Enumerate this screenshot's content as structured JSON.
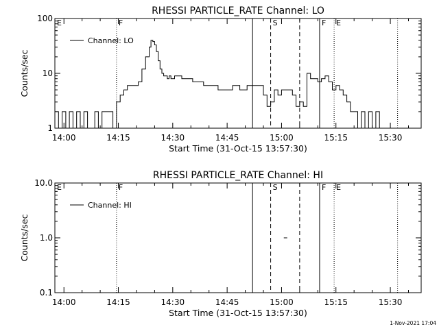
{
  "chart_data": [
    {
      "type": "line",
      "title": "RHESSI PARTICLE_RATE Channel: LO",
      "xlabel": "Start Time (31-Oct-15 13:57:30)",
      "ylabel": "Counts/sec",
      "y_scale": "log",
      "ylim": [
        1,
        100
      ],
      "xlim": [
        "13:57:30",
        "15:38:30"
      ],
      "x_ticks": [
        "14:00",
        "14:15",
        "14:30",
        "14:45",
        "15:00",
        "15:15",
        "15:30"
      ],
      "y_ticks": [
        "1",
        "10",
        "100"
      ],
      "legend": "top-left",
      "series": [
        {
          "name": "Channel: LO",
          "x": [
            "13:57:30",
            "13:58:30",
            "13:59:30",
            "14:00:30",
            "14:01:30",
            "14:02:30",
            "14:03:30",
            "14:04:30",
            "14:05:30",
            "14:06:30",
            "14:07:30",
            "14:08:30",
            "14:09:30",
            "14:10:30",
            "14:11:30",
            "14:12:30",
            "14:13:30",
            "14:14:30",
            "14:15:30",
            "14:16:30",
            "14:17:30",
            "14:18:30",
            "14:19:30",
            "14:20:30",
            "14:21:30",
            "14:22:30",
            "14:23:30",
            "14:24:00",
            "14:24:30",
            "14:25:00",
            "14:25:30",
            "14:26:00",
            "14:26:30",
            "14:27:00",
            "14:27:30",
            "14:28:00",
            "14:28:30",
            "14:29:00",
            "14:29:30",
            "14:30:30",
            "14:31:30",
            "14:32:30",
            "14:33:30",
            "14:34:30",
            "14:35:30",
            "14:36:30",
            "14:38:30",
            "14:40:30",
            "14:42:30",
            "14:44:30",
            "14:46:30",
            "14:48:30",
            "14:50:30",
            "14:52:30",
            "14:54:00",
            "14:55:00",
            "14:56:00",
            "14:57:00",
            "14:58:00",
            "14:59:00",
            "15:00:00",
            "15:01:00",
            "15:02:00",
            "15:03:00",
            "15:04:00",
            "15:05:00",
            "15:06:00",
            "15:07:00",
            "15:08:00",
            "15:09:00",
            "15:10:00",
            "15:11:00",
            "15:12:00",
            "15:13:00",
            "15:14:00",
            "15:15:00",
            "15:16:00",
            "15:17:00",
            "15:18:00",
            "15:19:00",
            "15:20:00",
            "15:21:00",
            "15:22:00",
            "15:23:00",
            "15:24:00",
            "15:25:00",
            "15:26:00",
            "15:27:00",
            "15:28:00"
          ],
          "y": [
            2,
            1,
            2,
            1,
            2,
            1,
            2,
            1,
            2,
            1,
            1,
            2,
            1,
            2,
            2,
            2,
            1,
            3,
            4,
            5,
            6,
            6,
            6,
            7,
            12,
            20,
            30,
            40,
            38,
            33,
            25,
            17,
            12,
            10,
            9,
            9,
            8,
            9,
            8,
            9,
            9,
            8,
            8,
            8,
            7,
            7,
            6,
            6,
            5,
            5,
            6,
            5,
            6,
            6,
            6,
            4,
            2.5,
            3,
            5,
            4,
            5,
            5,
            5,
            4,
            2.5,
            3,
            2.5,
            10,
            8,
            8,
            7,
            8,
            9,
            7,
            5,
            6,
            5,
            4,
            3,
            2,
            2,
            1,
            2,
            1,
            2,
            1,
            2,
            1,
            1
          ]
        }
      ],
      "markers": [
        {
          "label": "E",
          "time": "13:57:30",
          "style": "dotted"
        },
        {
          "label": "F",
          "time": "14:14:30",
          "style": "dotted"
        },
        {
          "label": "",
          "time": "14:52:00",
          "style": "solid"
        },
        {
          "label": "S",
          "time": "14:57:00",
          "style": "dashed"
        },
        {
          "label": "",
          "time": "15:05:00",
          "style": "dashed"
        },
        {
          "label": "F",
          "time": "15:10:30",
          "style": "solid"
        },
        {
          "label": "E",
          "time": "15:14:30",
          "style": "dotted"
        },
        {
          "label": "",
          "time": "15:32:00",
          "style": "dotted"
        }
      ]
    },
    {
      "type": "line",
      "title": "RHESSI PARTICLE_RATE Channel: HI",
      "xlabel": "Start Time (31-Oct-15 13:57:30)",
      "ylabel": "Counts/sec",
      "y_scale": "log",
      "ylim": [
        0.1,
        10
      ],
      "xlim": [
        "13:57:30",
        "15:38:30"
      ],
      "x_ticks": [
        "14:00",
        "14:15",
        "14:30",
        "14:45",
        "15:00",
        "15:15",
        "15:30"
      ],
      "y_ticks": [
        "0.1",
        "1.0",
        "10.0"
      ],
      "legend": "top-left",
      "series": [
        {
          "name": "Channel: HI",
          "x": [
            "15:01:00"
          ],
          "y": [
            1.0
          ]
        }
      ],
      "markers": [
        {
          "label": "E",
          "time": "13:57:30",
          "style": "dotted"
        },
        {
          "label": "F",
          "time": "14:14:30",
          "style": "dotted"
        },
        {
          "label": "",
          "time": "14:52:00",
          "style": "solid"
        },
        {
          "label": "S",
          "time": "14:57:00",
          "style": "dashed"
        },
        {
          "label": "",
          "time": "15:05:00",
          "style": "dashed"
        },
        {
          "label": "F",
          "time": "15:10:30",
          "style": "solid"
        },
        {
          "label": "E",
          "time": "15:14:30",
          "style": "dotted"
        },
        {
          "label": "",
          "time": "15:32:00",
          "style": "dotted"
        }
      ]
    }
  ],
  "footer": {
    "timestamp": "1-Nov-2021 17:04"
  }
}
